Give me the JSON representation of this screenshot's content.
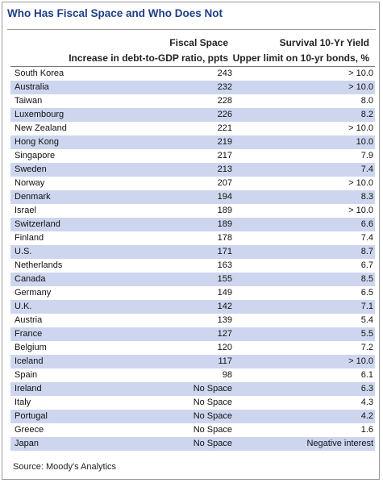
{
  "title": "Who Has Fiscal Space and Who Does Not",
  "columns": {
    "fiscal_space_title": "Fiscal Space",
    "fiscal_space_subtitle": "Increase in debt-to-GDP ratio, ppts",
    "yield_title": "Survival 10-Yr Yield",
    "yield_subtitle": "Upper limit on 10-yr bonds, %"
  },
  "rows": [
    {
      "country": "South Korea",
      "fiscal_space": "243",
      "yield": "> 10.0"
    },
    {
      "country": "Australia",
      "fiscal_space": "232",
      "yield": "> 10.0"
    },
    {
      "country": "Taiwan",
      "fiscal_space": "228",
      "yield": "8.0"
    },
    {
      "country": "Luxembourg",
      "fiscal_space": "226",
      "yield": "8.2"
    },
    {
      "country": "New Zealand",
      "fiscal_space": "221",
      "yield": "> 10.0"
    },
    {
      "country": "Hong Kong",
      "fiscal_space": "219",
      "yield": "10.0"
    },
    {
      "country": "Singapore",
      "fiscal_space": "217",
      "yield": "7.9"
    },
    {
      "country": "Sweden",
      "fiscal_space": "213",
      "yield": "7.4"
    },
    {
      "country": "Norway",
      "fiscal_space": "207",
      "yield": "> 10.0"
    },
    {
      "country": "Denmark",
      "fiscal_space": "194",
      "yield": "8.3"
    },
    {
      "country": "Israel",
      "fiscal_space": "189",
      "yield": "> 10.0"
    },
    {
      "country": "Switzerland",
      "fiscal_space": "189",
      "yield": "6.6"
    },
    {
      "country": "Finland",
      "fiscal_space": "178",
      "yield": "7.4"
    },
    {
      "country": "U.S.",
      "fiscal_space": "171",
      "yield": "8.7"
    },
    {
      "country": "Netherlands",
      "fiscal_space": "163",
      "yield": "6.7"
    },
    {
      "country": "Canada",
      "fiscal_space": "155",
      "yield": "8.5"
    },
    {
      "country": "Germany",
      "fiscal_space": "149",
      "yield": "6.5"
    },
    {
      "country": "U.K.",
      "fiscal_space": "142",
      "yield": "7.1"
    },
    {
      "country": "Austria",
      "fiscal_space": "139",
      "yield": "5.4"
    },
    {
      "country": "France",
      "fiscal_space": "127",
      "yield": "5.5"
    },
    {
      "country": "Belgium",
      "fiscal_space": "120",
      "yield": "7.2"
    },
    {
      "country": "Iceland",
      "fiscal_space": "117",
      "yield": "> 10.0"
    },
    {
      "country": "Spain",
      "fiscal_space": "98",
      "yield": "6.1"
    },
    {
      "country": "Ireland",
      "fiscal_space": "No Space",
      "yield": "6.3"
    },
    {
      "country": "Italy",
      "fiscal_space": "No Space",
      "yield": "4.3"
    },
    {
      "country": "Portugal",
      "fiscal_space": "No Space",
      "yield": "4.2"
    },
    {
      "country": "Greece",
      "fiscal_space": "No Space",
      "yield": "1.6"
    },
    {
      "country": "Japan",
      "fiscal_space": "No Space",
      "yield": "Negative interest"
    }
  ],
  "source": "Source: Moody's Analytics",
  "colors": {
    "title": "#1f3f86",
    "row_shade": "#cdd6ee",
    "border": "#9a9a9a"
  }
}
